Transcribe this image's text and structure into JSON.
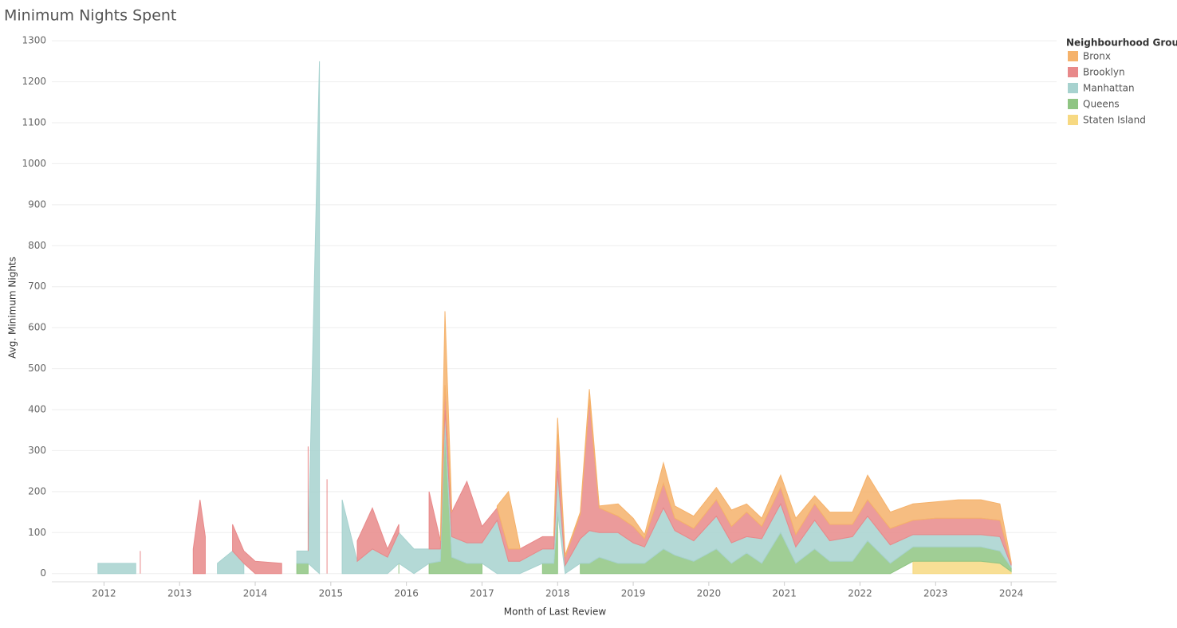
{
  "chart_data": {
    "type": "stacked-area",
    "title": "Minimum Nights Spent",
    "x_label": "Month of Last Review",
    "y_label": "Avg. Minimum Nights",
    "legend_title": "Neighbourhood Group",
    "legend_position": "top-right",
    "grid": true,
    "xlim": [
      2011.31,
      2024.6
    ],
    "xticks": [
      2012,
      2013,
      2014,
      2015,
      2016,
      2017,
      2018,
      2019,
      2020,
      2021,
      2022,
      2023,
      2024
    ],
    "ylim": [
      -20,
      1310
    ],
    "yticks": [
      0,
      100,
      200,
      300,
      400,
      500,
      600,
      700,
      800,
      900,
      1000,
      1100,
      1200,
      1300
    ],
    "x": [
      2011.92,
      2012.42,
      2012.48,
      2012.7,
      2013.18,
      2013.27,
      2013.34,
      2013.5,
      2013.7,
      2013.85,
      2014.0,
      2014.35,
      2014.55,
      2014.7,
      2014.85,
      2014.95,
      2015.15,
      2015.35,
      2015.55,
      2015.75,
      2015.9,
      2016.1,
      2016.3,
      2016.45,
      2016.51,
      2016.6,
      2016.8,
      2017.0,
      2017.2,
      2017.35,
      2017.5,
      2017.8,
      2017.95,
      2018.0,
      2018.1,
      2018.3,
      2018.42,
      2018.55,
      2018.8,
      2019.0,
      2019.15,
      2019.4,
      2019.55,
      2019.8,
      2020.1,
      2020.3,
      2020.5,
      2020.7,
      2020.95,
      2021.15,
      2021.4,
      2021.6,
      2021.9,
      2022.1,
      2022.4,
      2022.7,
      2023.0,
      2023.3,
      2023.6,
      2023.85,
      2024.0
    ],
    "series": [
      {
        "name": "Bronx",
        "color": "#f5b26b",
        "values": [
          null,
          null,
          null,
          null,
          null,
          null,
          null,
          null,
          null,
          null,
          null,
          null,
          null,
          null,
          null,
          null,
          null,
          null,
          null,
          null,
          null,
          null,
          null,
          5,
          180,
          5,
          null,
          null,
          5,
          140,
          5,
          null,
          5,
          40,
          5,
          5,
          25,
          5,
          30,
          20,
          10,
          50,
          30,
          30,
          30,
          40,
          20,
          20,
          30,
          40,
          20,
          30,
          30,
          60,
          40,
          40,
          40,
          45,
          45,
          40,
          3
        ]
      },
      {
        "name": "Brooklyn",
        "color": "#e8898a",
        "values": [
          null,
          null,
          55,
          null,
          60,
          180,
          90,
          null,
          65,
          30,
          30,
          25,
          null,
          255,
          null,
          230,
          null,
          50,
          100,
          20,
          20,
          null,
          140,
          20,
          60,
          60,
          150,
          40,
          30,
          30,
          30,
          30,
          30,
          90,
          20,
          60,
          320,
          60,
          40,
          40,
          20,
          60,
          30,
          30,
          40,
          40,
          60,
          30,
          40,
          30,
          40,
          40,
          30,
          40,
          40,
          35,
          40,
          40,
          40,
          40,
          5
        ]
      },
      {
        "name": "Manhattan",
        "color": "#a7d2cf",
        "values": [
          25,
          25,
          null,
          null,
          null,
          null,
          null,
          25,
          55,
          25,
          null,
          null,
          30,
          30,
          1250,
          null,
          180,
          30,
          60,
          40,
          75,
          60,
          35,
          30,
          50,
          50,
          50,
          50,
          130,
          30,
          30,
          35,
          35,
          100,
          20,
          60,
          80,
          60,
          75,
          50,
          40,
          100,
          60,
          50,
          80,
          50,
          40,
          60,
          70,
          40,
          70,
          50,
          60,
          60,
          45,
          30,
          30,
          30,
          30,
          35,
          5
        ]
      },
      {
        "name": "Queens",
        "color": "#8fc583",
        "values": [
          null,
          null,
          null,
          null,
          null,
          null,
          null,
          null,
          null,
          null,
          null,
          null,
          25,
          25,
          null,
          null,
          null,
          null,
          null,
          null,
          25,
          null,
          25,
          30,
          350,
          40,
          25,
          25,
          null,
          null,
          null,
          25,
          25,
          150,
          null,
          25,
          25,
          40,
          25,
          25,
          25,
          60,
          45,
          30,
          60,
          25,
          50,
          25,
          100,
          25,
          60,
          30,
          30,
          80,
          25,
          35,
          35,
          35,
          35,
          30,
          10
        ]
      },
      {
        "name": "Staten Island",
        "color": "#f7d982",
        "values": [
          null,
          null,
          null,
          null,
          null,
          null,
          null,
          null,
          null,
          null,
          null,
          null,
          null,
          null,
          null,
          null,
          null,
          null,
          null,
          null,
          null,
          null,
          null,
          null,
          null,
          null,
          null,
          null,
          null,
          null,
          null,
          null,
          null,
          null,
          null,
          null,
          null,
          null,
          null,
          null,
          null,
          null,
          null,
          null,
          null,
          null,
          null,
          null,
          null,
          null,
          null,
          null,
          null,
          null,
          null,
          30,
          30,
          30,
          30,
          25,
          5
        ]
      }
    ]
  }
}
